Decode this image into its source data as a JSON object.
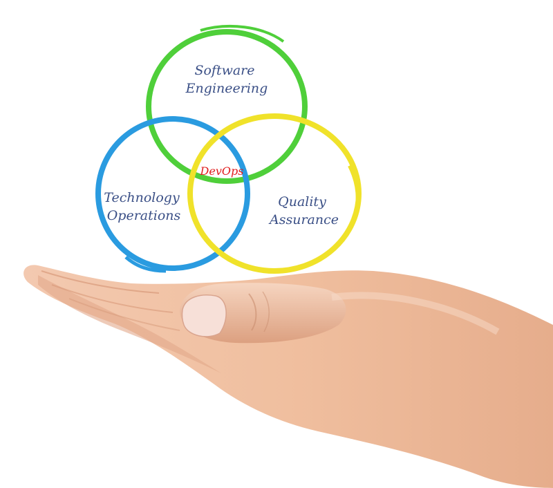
{
  "diagram": {
    "circles": [
      {
        "id": "software-engineering",
        "lines": [
          "Software",
          "Engineering"
        ],
        "color": "#4fcf3a"
      },
      {
        "id": "technology-operations",
        "lines": [
          "Technology",
          "Operations"
        ],
        "color": "#2a9be0"
      },
      {
        "id": "quality-assurance",
        "lines": [
          "Quality",
          "Assurance"
        ],
        "color": "#f0e22a"
      }
    ],
    "center": {
      "text": "DevOps",
      "color": "#e01b1b"
    },
    "label_color": "#3a4f86"
  }
}
